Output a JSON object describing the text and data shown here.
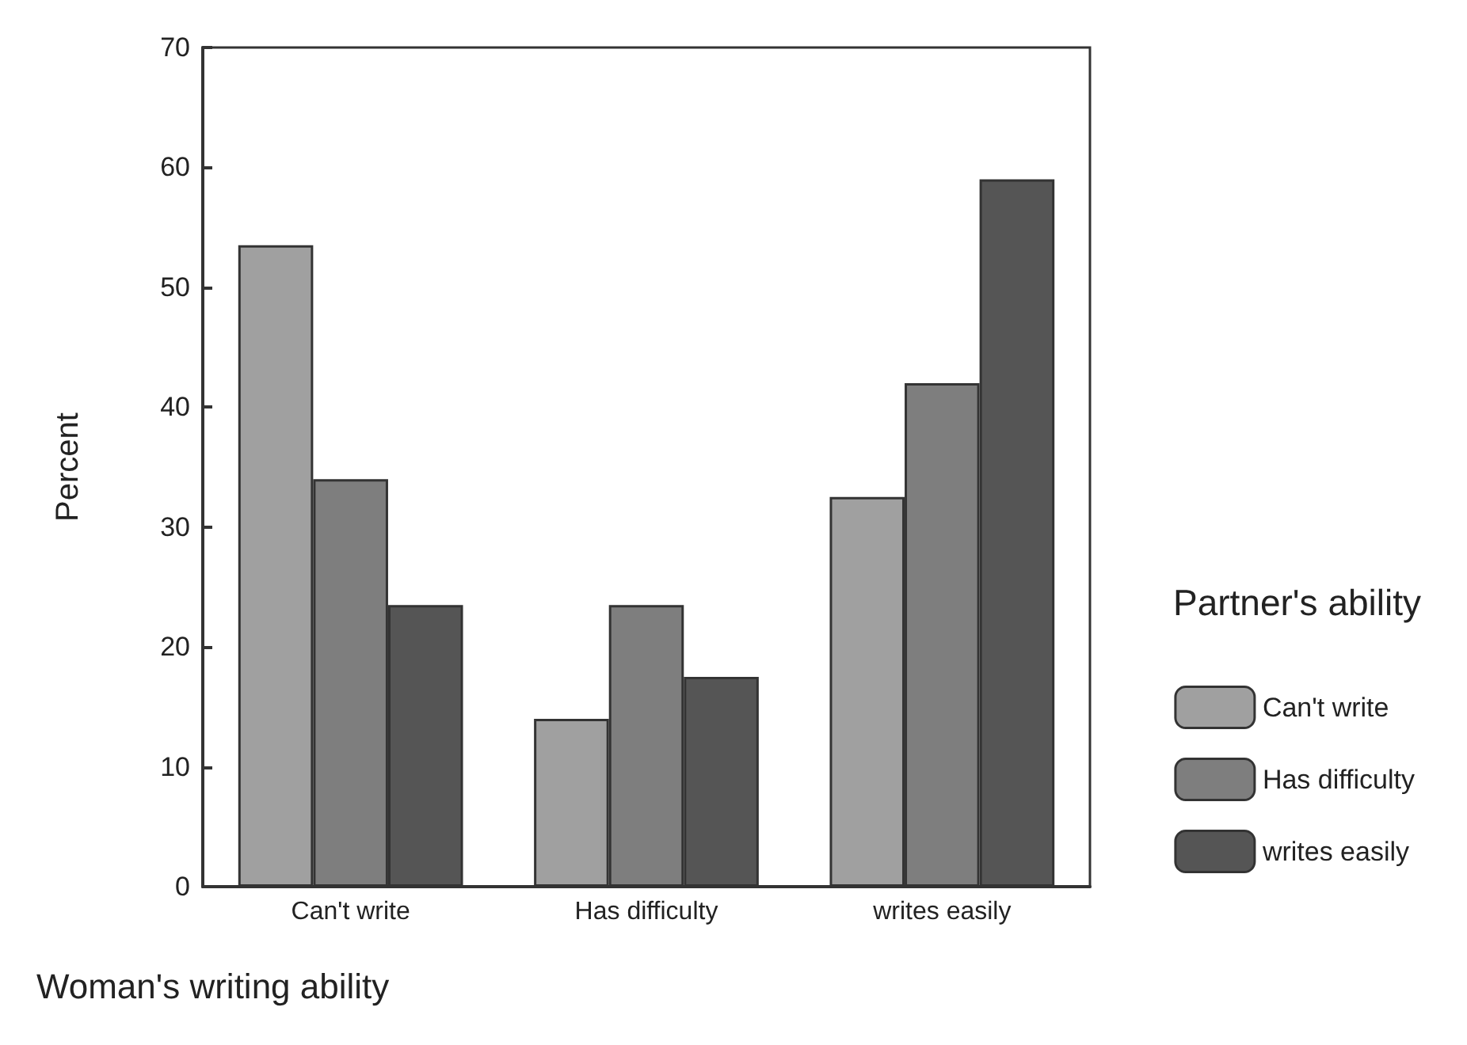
{
  "chart_data": {
    "type": "bar",
    "xlabel": "Woman's writing ability",
    "ylabel": "Percent",
    "legend_title": "Partner's ability",
    "legend": "right",
    "grid": false,
    "categories": [
      "Can't write",
      "Has difficulty",
      "writes easily"
    ],
    "series": [
      {
        "name": "Can't write",
        "color": "#a0a0a0",
        "values": [
          53.5,
          14,
          32.5
        ]
      },
      {
        "name": "Has difficulty",
        "color": "#7e7e7e",
        "values": [
          34,
          23.5,
          42
        ]
      },
      {
        "name": "writes easily",
        "color": "#555555",
        "values": [
          23.5,
          17.5,
          59
        ]
      }
    ],
    "ylim": [
      0,
      70
    ],
    "yticks": [
      0,
      10,
      20,
      30,
      40,
      50,
      60,
      70
    ]
  }
}
